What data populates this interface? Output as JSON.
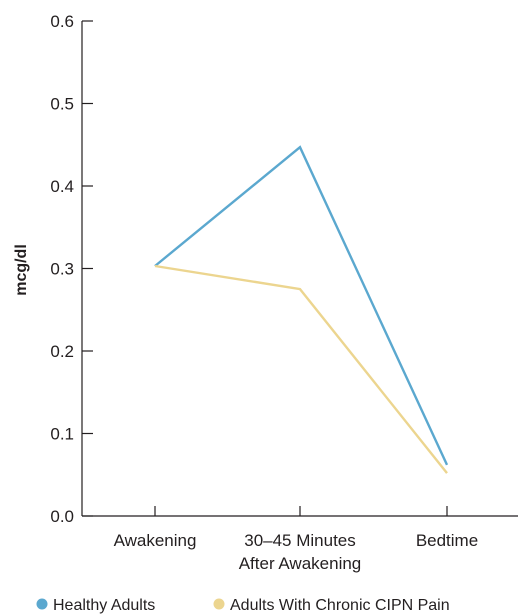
{
  "chart_data": {
    "type": "line",
    "title": "",
    "xlabel": "",
    "ylabel": "mcg/dl",
    "ylim": [
      0,
      0.6
    ],
    "yticks": [
      "0.0",
      "0.1",
      "0.2",
      "0.3",
      "0.4",
      "0.5",
      "0.6"
    ],
    "categories": [
      [
        "Awakening"
      ],
      [
        "30–45 Minutes",
        "After Awakening"
      ],
      [
        "Bedtime"
      ]
    ],
    "series": [
      {
        "name": "Healthy Adults",
        "color": "#5ba8cf",
        "values": [
          0.303,
          0.447,
          0.062
        ]
      },
      {
        "name": "Adults With Chronic CIPN Pain",
        "color": "#ecd58f",
        "values": [
          0.303,
          0.275,
          0.052
        ]
      }
    ],
    "grid": false,
    "legend_position": "bottom"
  }
}
